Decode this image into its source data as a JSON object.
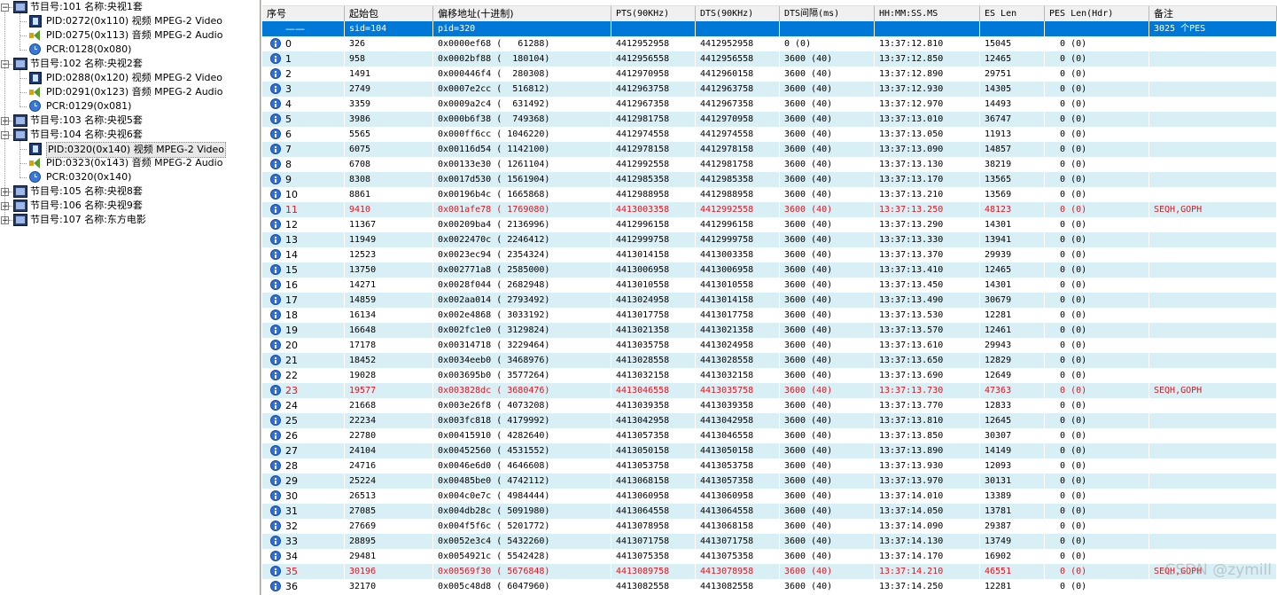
{
  "tree": {
    "nodes": [
      {
        "level": 0,
        "type": "program",
        "expanded": true,
        "label": "节目号:101 名称:央视1套"
      },
      {
        "level": 1,
        "type": "video",
        "label": "PID:0272(0x110) 视频 MPEG-2 Video"
      },
      {
        "level": 1,
        "type": "audio",
        "label": "PID:0275(0x113) 音频 MPEG-2 Audio"
      },
      {
        "level": 1,
        "type": "pcr",
        "label": "PCR:0128(0x080)"
      },
      {
        "level": 0,
        "type": "program",
        "expanded": true,
        "label": "节目号:102 名称:央视2套"
      },
      {
        "level": 1,
        "type": "video",
        "label": "PID:0288(0x120) 视频 MPEG-2 Video"
      },
      {
        "level": 1,
        "type": "audio",
        "label": "PID:0291(0x123) 音频 MPEG-2 Audio"
      },
      {
        "level": 1,
        "type": "pcr",
        "label": "PCR:0129(0x081)"
      },
      {
        "level": 0,
        "type": "program",
        "expanded": false,
        "label": "节目号:103 名称:央视5套"
      },
      {
        "level": 0,
        "type": "program",
        "expanded": true,
        "label": "节目号:104 名称:央视6套"
      },
      {
        "level": 1,
        "type": "video",
        "selected": true,
        "label": "PID:0320(0x140) 视频 MPEG-2 Video"
      },
      {
        "level": 1,
        "type": "audio",
        "label": "PID:0323(0x143) 音频 MPEG-2 Audio"
      },
      {
        "level": 1,
        "type": "pcr",
        "label": "PCR:0320(0x140)"
      },
      {
        "level": 0,
        "type": "program",
        "expanded": false,
        "label": "节目号:105 名称:央视8套"
      },
      {
        "level": 0,
        "type": "program",
        "expanded": false,
        "label": "节目号:106 名称:央视9套"
      },
      {
        "level": 0,
        "type": "program",
        "expanded": false,
        "label": "节目号:107 名称:东方电影"
      }
    ]
  },
  "table": {
    "columns": [
      "序号",
      "起始包",
      "偏移地址(十进制)",
      "PTS(90KHz)",
      "DTS(90KHz)",
      "DTS间隔(ms)",
      "HH:MM:SS.MS",
      "ES Len",
      "PES Len(Hdr)",
      "备注"
    ],
    "summary_row": {
      "index": "——",
      "start": "sid=104",
      "offset": "pid=320",
      "note": "3025 个PES"
    },
    "rows": [
      [
        "0",
        "326",
        "0x0000ef68 (   61288)",
        "4412952958",
        "4412952958",
        "0 (0)",
        "13:37:12.810",
        "15045",
        "  0 (0)",
        ""
      ],
      [
        "1",
        "958",
        "0x0002bf88 (  180104)",
        "4412956558",
        "4412956558",
        "3600 (40)",
        "13:37:12.850",
        "12465",
        "  0 (0)",
        ""
      ],
      [
        "2",
        "1491",
        "0x000446f4 (  280308)",
        "4412970958",
        "4412960158",
        "3600 (40)",
        "13:37:12.890",
        "29751",
        "  0 (0)",
        ""
      ],
      [
        "3",
        "2749",
        "0x0007e2cc (  516812)",
        "4412963758",
        "4412963758",
        "3600 (40)",
        "13:37:12.930",
        "14305",
        "  0 (0)",
        ""
      ],
      [
        "4",
        "3359",
        "0x0009a2c4 (  631492)",
        "4412967358",
        "4412967358",
        "3600 (40)",
        "13:37:12.970",
        "14493",
        "  0 (0)",
        ""
      ],
      [
        "5",
        "3986",
        "0x000b6f38 (  749368)",
        "4412981758",
        "4412970958",
        "3600 (40)",
        "13:37:13.010",
        "36747",
        "  0 (0)",
        ""
      ],
      [
        "6",
        "5565",
        "0x000ff6cc ( 1046220)",
        "4412974558",
        "4412974558",
        "3600 (40)",
        "13:37:13.050",
        "11913",
        "  0 (0)",
        ""
      ],
      [
        "7",
        "6075",
        "0x00116d54 ( 1142100)",
        "4412978158",
        "4412978158",
        "3600 (40)",
        "13:37:13.090",
        "14857",
        "  0 (0)",
        ""
      ],
      [
        "8",
        "6708",
        "0x00133e30 ( 1261104)",
        "4412992558",
        "4412981758",
        "3600 (40)",
        "13:37:13.130",
        "38219",
        "  0 (0)",
        ""
      ],
      [
        "9",
        "8308",
        "0x0017d530 ( 1561904)",
        "4412985358",
        "4412985358",
        "3600 (40)",
        "13:37:13.170",
        "13565",
        "  0 (0)",
        ""
      ],
      [
        "10",
        "8861",
        "0x00196b4c ( 1665868)",
        "4412988958",
        "4412988958",
        "3600 (40)",
        "13:37:13.210",
        "13569",
        "  0 (0)",
        ""
      ],
      [
        "11",
        "9410",
        "0x001afe78 ( 1769080)",
        "4413003358",
        "4412992558",
        "3600 (40)",
        "13:37:13.250",
        "48123",
        "  0 (0)",
        "SEQH,GOPH"
      ],
      [
        "12",
        "11367",
        "0x00209ba4 ( 2136996)",
        "4412996158",
        "4412996158",
        "3600 (40)",
        "13:37:13.290",
        "14301",
        "  0 (0)",
        ""
      ],
      [
        "13",
        "11949",
        "0x0022470c ( 2246412)",
        "4412999758",
        "4412999758",
        "3600 (40)",
        "13:37:13.330",
        "13941",
        "  0 (0)",
        ""
      ],
      [
        "14",
        "12523",
        "0x0023ec94 ( 2354324)",
        "4413014158",
        "4413003358",
        "3600 (40)",
        "13:37:13.370",
        "29939",
        "  0 (0)",
        ""
      ],
      [
        "15",
        "13750",
        "0x002771a8 ( 2585000)",
        "4413006958",
        "4413006958",
        "3600 (40)",
        "13:37:13.410",
        "12465",
        "  0 (0)",
        ""
      ],
      [
        "16",
        "14271",
        "0x0028f044 ( 2682948)",
        "4413010558",
        "4413010558",
        "3600 (40)",
        "13:37:13.450",
        "14301",
        "  0 (0)",
        ""
      ],
      [
        "17",
        "14859",
        "0x002aa014 ( 2793492)",
        "4413024958",
        "4413014158",
        "3600 (40)",
        "13:37:13.490",
        "30679",
        "  0 (0)",
        ""
      ],
      [
        "18",
        "16134",
        "0x002e4868 ( 3033192)",
        "4413017758",
        "4413017758",
        "3600 (40)",
        "13:37:13.530",
        "12281",
        "  0 (0)",
        ""
      ],
      [
        "19",
        "16648",
        "0x002fc1e0 ( 3129824)",
        "4413021358",
        "4413021358",
        "3600 (40)",
        "13:37:13.570",
        "12461",
        "  0 (0)",
        ""
      ],
      [
        "20",
        "17178",
        "0x00314718 ( 3229464)",
        "4413035758",
        "4413024958",
        "3600 (40)",
        "13:37:13.610",
        "29943",
        "  0 (0)",
        ""
      ],
      [
        "21",
        "18452",
        "0x0034eeb0 ( 3468976)",
        "4413028558",
        "4413028558",
        "3600 (40)",
        "13:37:13.650",
        "12829",
        "  0 (0)",
        ""
      ],
      [
        "22",
        "19028",
        "0x003695b0 ( 3577264)",
        "4413032158",
        "4413032158",
        "3600 (40)",
        "13:37:13.690",
        "12649",
        "  0 (0)",
        ""
      ],
      [
        "23",
        "19577",
        "0x003828dc ( 3680476)",
        "4413046558",
        "4413035758",
        "3600 (40)",
        "13:37:13.730",
        "47363",
        "  0 (0)",
        "SEQH,GOPH"
      ],
      [
        "24",
        "21668",
        "0x003e26f8 ( 4073208)",
        "4413039358",
        "4413039358",
        "3600 (40)",
        "13:37:13.770",
        "12833",
        "  0 (0)",
        ""
      ],
      [
        "25",
        "22234",
        "0x003fc818 ( 4179992)",
        "4413042958",
        "4413042958",
        "3600 (40)",
        "13:37:13.810",
        "12645",
        "  0 (0)",
        ""
      ],
      [
        "26",
        "22780",
        "0x00415910 ( 4282640)",
        "4413057358",
        "4413046558",
        "3600 (40)",
        "13:37:13.850",
        "30307",
        "  0 (0)",
        ""
      ],
      [
        "27",
        "24104",
        "0x00452560 ( 4531552)",
        "4413050158",
        "4413050158",
        "3600 (40)",
        "13:37:13.890",
        "14149",
        "  0 (0)",
        ""
      ],
      [
        "28",
        "24716",
        "0x0046e6d0 ( 4646608)",
        "4413053758",
        "4413053758",
        "3600 (40)",
        "13:37:13.930",
        "12093",
        "  0 (0)",
        ""
      ],
      [
        "29",
        "25224",
        "0x00485be0 ( 4742112)",
        "4413068158",
        "4413057358",
        "3600 (40)",
        "13:37:13.970",
        "30131",
        "  0 (0)",
        ""
      ],
      [
        "30",
        "26513",
        "0x004c0e7c ( 4984444)",
        "4413060958",
        "4413060958",
        "3600 (40)",
        "13:37:14.010",
        "13389",
        "  0 (0)",
        ""
      ],
      [
        "31",
        "27085",
        "0x004db28c ( 5091980)",
        "4413064558",
        "4413064558",
        "3600 (40)",
        "13:37:14.050",
        "13781",
        "  0 (0)",
        ""
      ],
      [
        "32",
        "27669",
        "0x004f5f6c ( 5201772)",
        "4413078958",
        "4413068158",
        "3600 (40)",
        "13:37:14.090",
        "29387",
        "  0 (0)",
        ""
      ],
      [
        "33",
        "28895",
        "0x0052e3c4 ( 5432260)",
        "4413071758",
        "4413071758",
        "3600 (40)",
        "13:37:14.130",
        "13749",
        "  0 (0)",
        ""
      ],
      [
        "34",
        "29481",
        "0x0054921c ( 5542428)",
        "4413075358",
        "4413075358",
        "3600 (40)",
        "13:37:14.170",
        "16902",
        "  0 (0)",
        ""
      ],
      [
        "35",
        "30196",
        "0x00569f30 ( 5676848)",
        "4413089758",
        "4413078958",
        "3600 (40)",
        "13:37:14.210",
        "46551",
        "  0 (0)",
        "SEQH,GOPH"
      ],
      [
        "36",
        "32170",
        "0x005c48d8 ( 6047960)",
        "4413082558",
        "4413082558",
        "3600 (40)",
        "13:37:14.250",
        "12281",
        "  0 (0)",
        ""
      ]
    ],
    "highlight_rows": [
      11,
      23,
      35
    ]
  },
  "watermark": "CSDN @zymill",
  "colors": {
    "highlight_text": "#e8101a",
    "selected_row": "#0078d7",
    "alt_row": "#d7eff5"
  }
}
